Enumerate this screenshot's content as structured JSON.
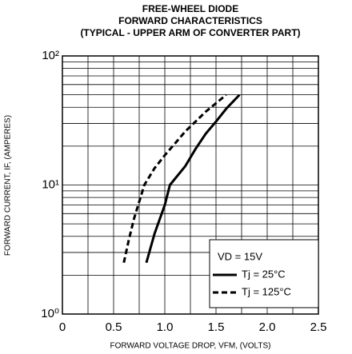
{
  "chart_data": {
    "type": "line",
    "title": [
      "FREE-WHEEL DIODE",
      "FORWARD CHARACTERISTICS",
      "(TYPICAL - UPPER ARM OF CONVERTER PART)"
    ],
    "xlabel": "FORWARD VOLTAGE DROP, VFM, (VOLTS)",
    "ylabel": "FORWARD CURRENT, IF, (AMPERES)",
    "annotation": "VD = 15V",
    "log_y": true,
    "grid": true,
    "legend": "lower right",
    "xlim": [
      0,
      2.5
    ],
    "xticks": [
      0,
      0.5,
      {
        "value": 1,
        "label": "1.0"
      },
      1.5,
      {
        "value": 2,
        "label": "2.0"
      },
      2.5
    ],
    "minor_xticks": [
      0.25,
      0.75,
      1.25,
      1.75,
      2.25
    ],
    "ylim": [
      1,
      100
    ],
    "yticks": [
      {
        "value": 1,
        "label": "10⁰"
      },
      {
        "value": 10,
        "label": "10¹"
      },
      {
        "value": 100,
        "label": "10²"
      }
    ],
    "minor_yticks": [
      2,
      3,
      4,
      5,
      6,
      7,
      8,
      9,
      20,
      30,
      40,
      50,
      60,
      70,
      80,
      90
    ],
    "series": [
      {
        "name": "Tj = 25°C",
        "color": "#000000",
        "dash": false,
        "x": [
          0.82,
          0.9,
          1.0,
          1.05,
          1.2,
          1.3,
          1.4,
          1.5,
          1.6,
          1.73
        ],
        "values": [
          2.5,
          4.2,
          7,
          10,
          14,
          19,
          25,
          31,
          39,
          50
        ]
      },
      {
        "name": "Tj = 125°C",
        "color": "#000000",
        "dash": true,
        "x": [
          0.6,
          0.65,
          0.7,
          0.8,
          0.9,
          1.0,
          1.1,
          1.2,
          1.3,
          1.4,
          1.5,
          1.6
        ],
        "values": [
          2.5,
          3.8,
          5.5,
          10,
          13.5,
          17,
          21,
          26,
          31,
          37,
          43,
          50
        ]
      }
    ]
  }
}
